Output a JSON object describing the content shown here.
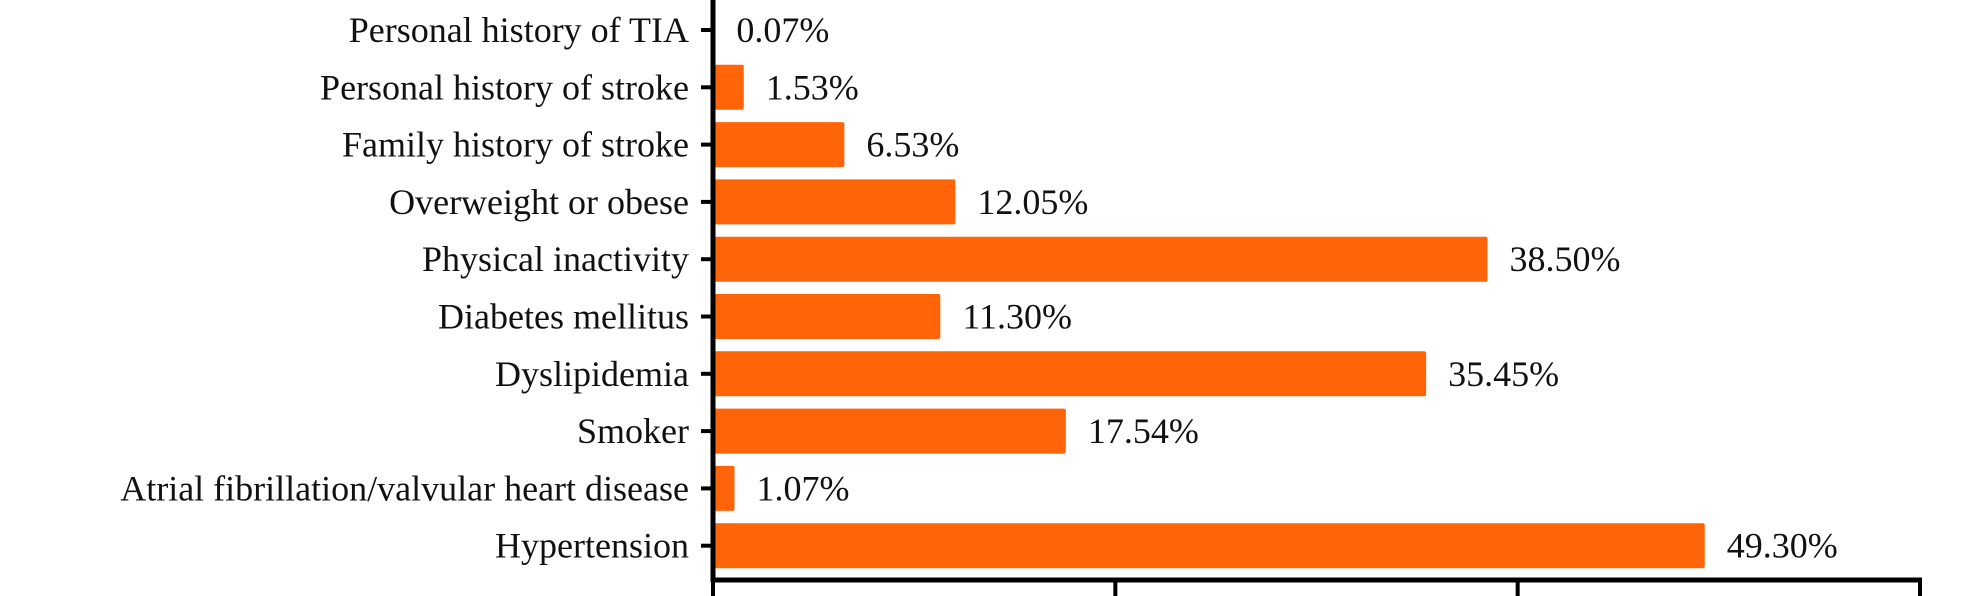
{
  "chart_data": {
    "type": "bar",
    "orientation": "horizontal",
    "categories": [
      "Personal history of TIA",
      "Personal history of stroke",
      "Family history of stroke",
      "Overweight or obese",
      "Physical inactivity",
      "Diabetes mellitus",
      "Dyslipidemia",
      "Smoker",
      "Atrial fibrillation/valvular heart disease",
      "Hypertension"
    ],
    "values": [
      0.07,
      1.53,
      6.53,
      12.05,
      38.5,
      11.3,
      35.45,
      17.54,
      1.07,
      49.3
    ],
    "value_labels": [
      "0.07%",
      "1.53%",
      "6.53%",
      "12.05%",
      "38.50%",
      "11.30%",
      "35.45%",
      "17.54%",
      "1.07%",
      "49.30%"
    ],
    "xlim": [
      0,
      60
    ],
    "x_ticks": [
      0,
      20,
      40,
      60
    ],
    "bar_color": "#FF6409",
    "axis_color": "#000000",
    "grid": false,
    "legend": "none"
  }
}
